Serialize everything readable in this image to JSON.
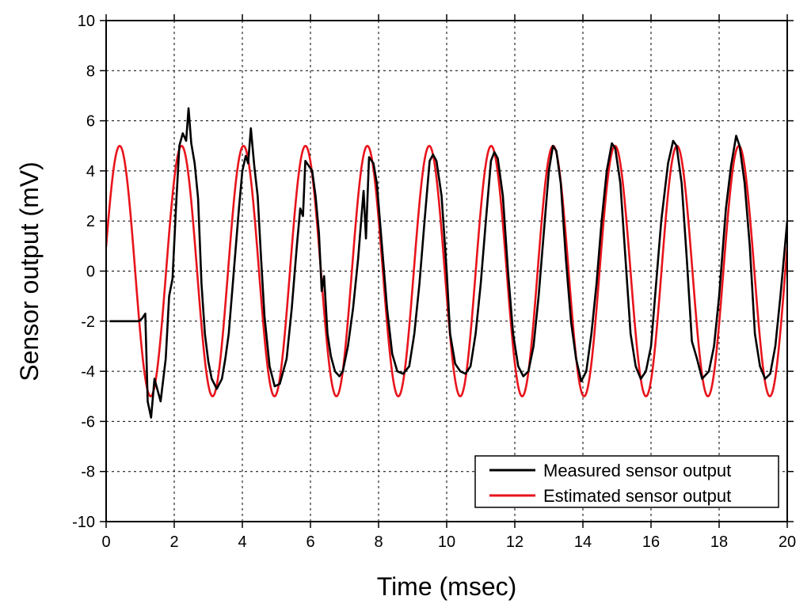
{
  "chart_data": {
    "type": "line",
    "title": "",
    "xlabel": "Time (msec)",
    "ylabel": "Sensor output (mV)",
    "xlim": [
      0,
      20
    ],
    "ylim": [
      -10,
      10
    ],
    "xticks": [
      0,
      2,
      4,
      6,
      8,
      10,
      12,
      14,
      16,
      18,
      20
    ],
    "yticks": [
      -10,
      -8,
      -6,
      -4,
      -2,
      0,
      2,
      4,
      6,
      8,
      10
    ],
    "grid": true,
    "legend_position": "bottom-right",
    "series": [
      {
        "name": "Measured sensor output",
        "color": "#000000",
        "points": [
          [
            0.1,
            -2.0
          ],
          [
            0.5,
            -2.0
          ],
          [
            0.95,
            -2.0
          ],
          [
            1.05,
            -1.9
          ],
          [
            1.1,
            -1.8
          ],
          [
            1.15,
            -1.7
          ],
          [
            1.22,
            -5.2
          ],
          [
            1.32,
            -5.85
          ],
          [
            1.42,
            -4.3
          ],
          [
            1.6,
            -5.2
          ],
          [
            1.75,
            -3.5
          ],
          [
            1.85,
            -1.0
          ],
          [
            1.95,
            -0.3
          ],
          [
            2.05,
            2.5
          ],
          [
            2.15,
            5.0
          ],
          [
            2.25,
            5.5
          ],
          [
            2.35,
            5.2
          ],
          [
            2.42,
            6.5
          ],
          [
            2.5,
            5.1
          ],
          [
            2.6,
            4.3
          ],
          [
            2.7,
            2.9
          ],
          [
            2.8,
            -0.5
          ],
          [
            2.9,
            -2.5
          ],
          [
            3.0,
            -3.6
          ],
          [
            3.1,
            -4.3
          ],
          [
            3.25,
            -4.7
          ],
          [
            3.4,
            -4.3
          ],
          [
            3.5,
            -3.5
          ],
          [
            3.6,
            -2.5
          ],
          [
            3.75,
            0.0
          ],
          [
            3.9,
            2.5
          ],
          [
            4.0,
            4.0
          ],
          [
            4.1,
            4.6
          ],
          [
            4.17,
            4.3
          ],
          [
            4.25,
            5.7
          ],
          [
            4.35,
            4.2
          ],
          [
            4.45,
            3.0
          ],
          [
            4.55,
            0.5
          ],
          [
            4.65,
            -1.8
          ],
          [
            4.8,
            -3.8
          ],
          [
            4.95,
            -4.6
          ],
          [
            5.1,
            -4.5
          ],
          [
            5.3,
            -3.5
          ],
          [
            5.45,
            -1.5
          ],
          [
            5.6,
            1.0
          ],
          [
            5.7,
            2.5
          ],
          [
            5.78,
            2.2
          ],
          [
            5.85,
            4.4
          ],
          [
            5.95,
            4.2
          ],
          [
            6.05,
            4.0
          ],
          [
            6.15,
            3.0
          ],
          [
            6.25,
            1.5
          ],
          [
            6.33,
            -0.8
          ],
          [
            6.4,
            -0.2
          ],
          [
            6.5,
            -2.5
          ],
          [
            6.6,
            -3.4
          ],
          [
            6.72,
            -4.0
          ],
          [
            6.85,
            -4.2
          ],
          [
            6.95,
            -4.0
          ],
          [
            7.1,
            -3.0
          ],
          [
            7.25,
            -1.5
          ],
          [
            7.4,
            0.5
          ],
          [
            7.5,
            2.2
          ],
          [
            7.56,
            3.2
          ],
          [
            7.63,
            1.3
          ],
          [
            7.72,
            4.55
          ],
          [
            7.85,
            4.3
          ],
          [
            7.95,
            3.5
          ],
          [
            8.1,
            1.0
          ],
          [
            8.25,
            -1.5
          ],
          [
            8.4,
            -3.3
          ],
          [
            8.55,
            -4.0
          ],
          [
            8.72,
            -4.1
          ],
          [
            8.9,
            -3.8
          ],
          [
            9.05,
            -2.5
          ],
          [
            9.2,
            -0.5
          ],
          [
            9.35,
            2.0
          ],
          [
            9.5,
            4.4
          ],
          [
            9.6,
            4.65
          ],
          [
            9.7,
            4.4
          ],
          [
            9.85,
            3.0
          ],
          [
            10.0,
            0.0
          ],
          [
            10.1,
            -2.5
          ],
          [
            10.25,
            -3.7
          ],
          [
            10.4,
            -4.0
          ],
          [
            10.55,
            -4.1
          ],
          [
            10.7,
            -3.8
          ],
          [
            10.85,
            -2.5
          ],
          [
            11.0,
            -0.5
          ],
          [
            11.15,
            2.0
          ],
          [
            11.3,
            4.4
          ],
          [
            11.4,
            4.75
          ],
          [
            11.5,
            4.5
          ],
          [
            11.65,
            3.0
          ],
          [
            11.8,
            0.0
          ],
          [
            11.95,
            -2.5
          ],
          [
            12.1,
            -3.8
          ],
          [
            12.25,
            -4.2
          ],
          [
            12.4,
            -4.0
          ],
          [
            12.55,
            -3.0
          ],
          [
            12.7,
            -1.0
          ],
          [
            12.85,
            1.5
          ],
          [
            13.0,
            4.0
          ],
          [
            13.12,
            5.0
          ],
          [
            13.22,
            4.8
          ],
          [
            13.35,
            3.5
          ],
          [
            13.5,
            0.5
          ],
          [
            13.65,
            -2.0
          ],
          [
            13.8,
            -3.5
          ],
          [
            13.95,
            -4.4
          ],
          [
            14.1,
            -4.0
          ],
          [
            14.25,
            -2.5
          ],
          [
            14.4,
            -0.5
          ],
          [
            14.55,
            2.0
          ],
          [
            14.7,
            4.0
          ],
          [
            14.85,
            5.1
          ],
          [
            14.95,
            4.9
          ],
          [
            15.1,
            3.5
          ],
          [
            15.25,
            0.5
          ],
          [
            15.4,
            -2.5
          ],
          [
            15.55,
            -3.8
          ],
          [
            15.7,
            -4.3
          ],
          [
            15.85,
            -4.0
          ],
          [
            16.0,
            -3.0
          ],
          [
            16.15,
            -0.5
          ],
          [
            16.3,
            2.0
          ],
          [
            16.5,
            4.3
          ],
          [
            16.65,
            5.2
          ],
          [
            16.75,
            5.0
          ],
          [
            16.9,
            3.5
          ],
          [
            17.05,
            0.5
          ],
          [
            17.2,
            -2.8
          ],
          [
            17.35,
            -3.5
          ],
          [
            17.5,
            -4.3
          ],
          [
            17.7,
            -4.0
          ],
          [
            17.85,
            -3.0
          ],
          [
            18.0,
            -1.0
          ],
          [
            18.2,
            2.5
          ],
          [
            18.35,
            4.2
          ],
          [
            18.5,
            5.4
          ],
          [
            18.6,
            5.0
          ],
          [
            18.75,
            3.5
          ],
          [
            18.9,
            1.0
          ],
          [
            19.05,
            -2.5
          ],
          [
            19.2,
            -3.8
          ],
          [
            19.35,
            -4.3
          ],
          [
            19.5,
            -4.1
          ],
          [
            19.65,
            -3.0
          ],
          [
            19.8,
            -1.0
          ],
          [
            19.9,
            0.5
          ],
          [
            20.0,
            2.0
          ]
        ]
      },
      {
        "name": "Estimated sensor output",
        "color": "#e8141c",
        "amplitude": 5,
        "frequency_per_msec": 0.55,
        "phase_ms": -0.0564,
        "x_start": 0,
        "x_end": 20
      }
    ]
  }
}
